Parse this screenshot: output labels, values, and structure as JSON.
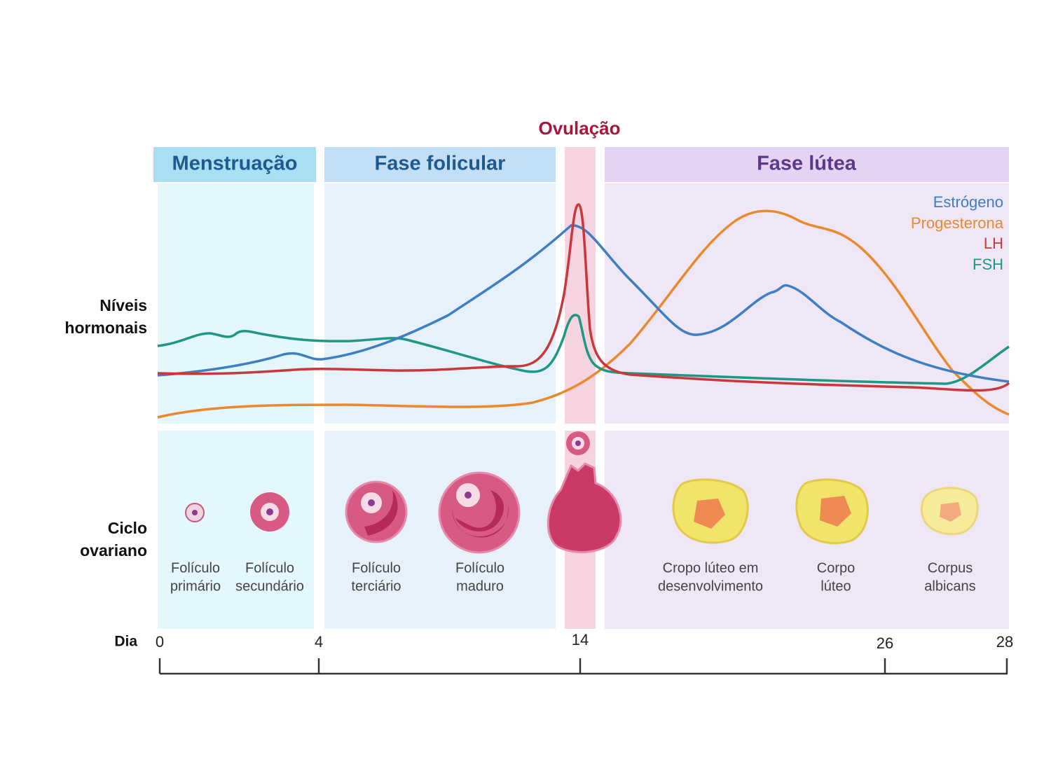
{
  "phases": {
    "menstruation": "Menstruação",
    "follicular": "Fase folicular",
    "ovulation": "Ovulação",
    "luteal": "Fase lútea"
  },
  "legend": [
    "Estrógeno",
    "Progesterona",
    "LH",
    "FSH"
  ],
  "rows": {
    "hormones": [
      "Níveis",
      "hormonais"
    ],
    "ovarian": [
      "Ciclo",
      "ovariano"
    ]
  },
  "stages": [
    [
      "Folículo",
      "primário"
    ],
    [
      "Folículo",
      "secundário"
    ],
    [
      "Folículo",
      "terciário"
    ],
    [
      "Folículo",
      "maduro"
    ],
    [
      "Cropo lúteo em",
      "desenvolvimento"
    ],
    [
      "Corpo",
      "lúteo"
    ],
    [
      "Corpus",
      "albicans"
    ]
  ],
  "day_axis": {
    "label": "Dia",
    "ticks": [
      "0",
      "4",
      "14",
      "26",
      "28"
    ]
  }
}
